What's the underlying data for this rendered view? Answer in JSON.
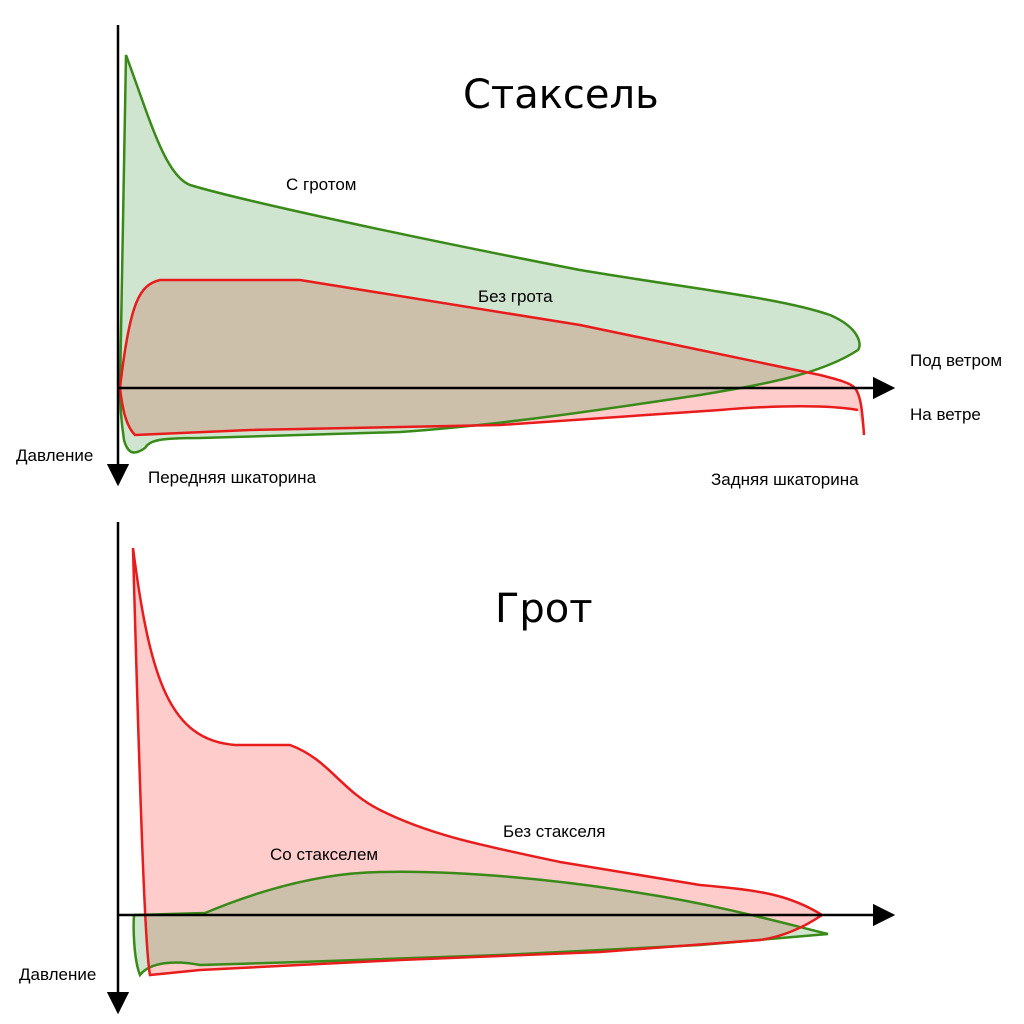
{
  "top_diagram": {
    "title": "Стаксель",
    "curve_with_main_label": "С гротом",
    "curve_without_main_label": "Без грота",
    "leeward_label": "Под ветром",
    "windward_label": "На ветре",
    "pressure_axis_label": "Давление",
    "luff_label": "Передняя шкаторина",
    "leech_label": "Задняя шкаторина"
  },
  "bottom_diagram": {
    "title": "Грот",
    "curve_without_jib_label": "Без стакселя",
    "curve_with_jib_label": "Со стакселем",
    "pressure_axis_label": "Давление"
  },
  "colors": {
    "green_stroke": "#3a8a1a",
    "green_fill": "#cfe5cf",
    "red_stroke": "#e81c1c",
    "red_fill": "#ffcccc",
    "overlap_fill": "#cdc0ab",
    "axis": "#000000"
  }
}
